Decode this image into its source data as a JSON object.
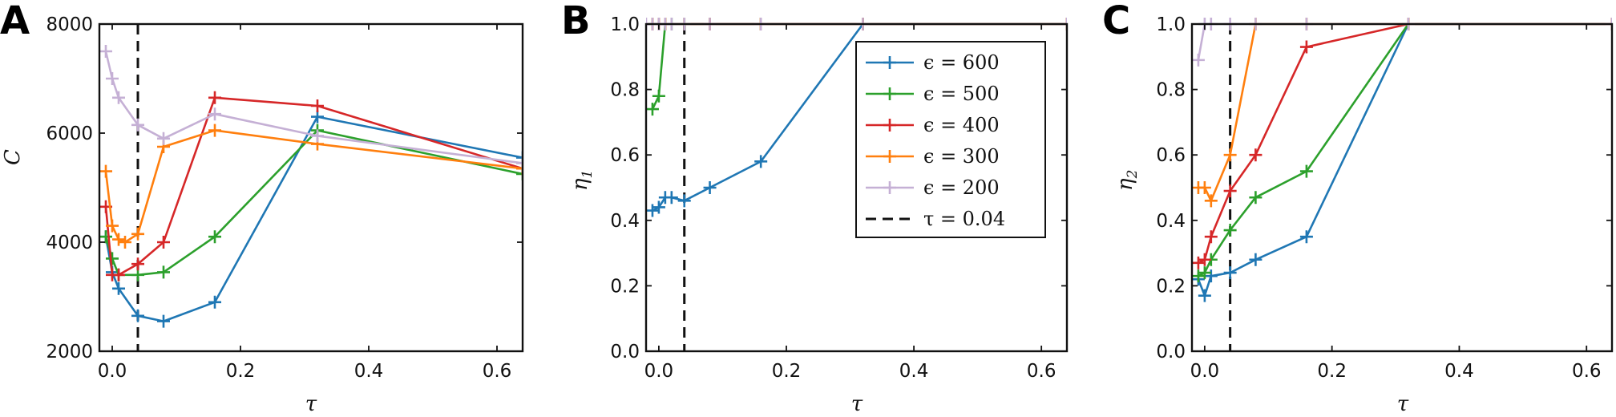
{
  "chart_data": [
    {
      "panel": "A",
      "type": "line",
      "xlabel": "τ",
      "ylabel": "C",
      "xlim": [
        -0.02,
        0.64
      ],
      "ylim": [
        2000,
        8000
      ],
      "xticks": [
        0.0,
        0.2,
        0.4,
        0.6
      ],
      "xtick_labels": [
        "0.0",
        "0.2",
        "0.4",
        "0.6"
      ],
      "yticks": [
        2000,
        4000,
        6000,
        8000
      ],
      "ytick_labels": [
        "2000",
        "4000",
        "6000",
        "8000"
      ],
      "grid": false,
      "vline": 0.04,
      "series": [
        {
          "name": "ϵ = 600",
          "color": "#1f77b4",
          "x": [
            -0.01,
            0.0,
            0.01,
            0.04,
            0.08,
            0.16,
            0.32,
            0.64
          ],
          "y": [
            4100,
            3450,
            3150,
            2650,
            2550,
            2900,
            6300,
            5550
          ]
        },
        {
          "name": "ϵ = 500",
          "color": "#2ca02c",
          "x": [
            -0.01,
            0.0,
            0.01,
            0.04,
            0.08,
            0.16,
            0.32,
            0.64
          ],
          "y": [
            4100,
            3700,
            3400,
            3400,
            3450,
            4100,
            6050,
            5250
          ]
        },
        {
          "name": "ϵ = 400",
          "color": "#d62728",
          "x": [
            -0.01,
            0.0,
            0.01,
            0.04,
            0.08,
            0.16,
            0.32,
            0.64
          ],
          "y": [
            4650,
            3400,
            3400,
            3600,
            4000,
            6650,
            6500,
            5350
          ]
        },
        {
          "name": "ϵ = 300",
          "color": "#ff7f0e",
          "x": [
            -0.01,
            0.0,
            0.01,
            0.02,
            0.04,
            0.08,
            0.16,
            0.32,
            0.64
          ],
          "y": [
            5300,
            4300,
            4050,
            4000,
            4150,
            5750,
            6050,
            5800,
            5350
          ]
        },
        {
          "name": "ϵ = 200",
          "color": "#c5b0d5",
          "x": [
            -0.01,
            0.0,
            0.01,
            0.04,
            0.08,
            0.16,
            0.32,
            0.64
          ],
          "y": [
            7500,
            7000,
            6650,
            6150,
            5900,
            6350,
            5950,
            5450
          ]
        }
      ]
    },
    {
      "panel": "B",
      "type": "line",
      "xlabel": "τ",
      "ylabel": "η",
      "ylabel_sub": "1",
      "xlim": [
        -0.02,
        0.64
      ],
      "ylim": [
        0.0,
        1.0
      ],
      "xticks": [
        0.0,
        0.2,
        0.4,
        0.6
      ],
      "xtick_labels": [
        "0.0",
        "0.2",
        "0.4",
        "0.6"
      ],
      "yticks": [
        0.0,
        0.2,
        0.4,
        0.6,
        0.8,
        1.0
      ],
      "ytick_labels": [
        "0.0",
        "0.2",
        "0.4",
        "0.6",
        "0.8",
        "1.0"
      ],
      "grid": false,
      "vline": 0.04,
      "series": [
        {
          "name": "ϵ = 600",
          "color": "#1f77b4",
          "x": [
            -0.01,
            0.0,
            0.01,
            0.02,
            0.04,
            0.08,
            0.16,
            0.32,
            0.64
          ],
          "y": [
            0.43,
            0.44,
            0.47,
            0.47,
            0.46,
            0.5,
            0.58,
            1.0,
            1.0
          ]
        },
        {
          "name": "ϵ = 500",
          "color": "#2ca02c",
          "x": [
            -0.01,
            0.0,
            0.01,
            0.02,
            0.04,
            0.08,
            0.16,
            0.32,
            0.64
          ],
          "y": [
            0.74,
            0.78,
            1.0,
            1.0,
            1.0,
            1.0,
            1.0,
            1.0,
            1.0
          ]
        },
        {
          "name": "ϵ = 400",
          "color": "#d62728",
          "x": [
            -0.01,
            0.0,
            0.01,
            0.04,
            0.08,
            0.16,
            0.32,
            0.64
          ],
          "y": [
            1.0,
            1.0,
            1.0,
            1.0,
            1.0,
            1.0,
            1.0,
            1.0
          ]
        },
        {
          "name": "ϵ = 300",
          "color": "#ff7f0e",
          "x": [
            -0.01,
            0.0,
            0.01,
            0.04,
            0.08,
            0.16,
            0.32,
            0.64
          ],
          "y": [
            1.0,
            1.0,
            1.0,
            1.0,
            1.0,
            1.0,
            1.0,
            1.0
          ]
        },
        {
          "name": "ϵ = 200",
          "color": "#c5b0d5",
          "x": [
            -0.02,
            -0.01,
            0.0,
            0.01,
            0.02,
            0.04,
            0.08,
            0.16,
            0.32,
            0.64
          ],
          "y": [
            1.0,
            1.0,
            1.0,
            1.0,
            1.0,
            1.0,
            1.0,
            1.0,
            1.0,
            1.0
          ]
        }
      ],
      "legend": {
        "placement": "top-right",
        "entries": [
          "ϵ = 600",
          "ϵ = 500",
          "ϵ = 400",
          "ϵ = 300",
          "ϵ = 200",
          "τ = 0.04"
        ]
      }
    },
    {
      "panel": "C",
      "type": "line",
      "xlabel": "τ",
      "ylabel": "η",
      "ylabel_sub": "2",
      "xlim": [
        -0.02,
        0.64
      ],
      "ylim": [
        0.0,
        1.0
      ],
      "xticks": [
        0.0,
        0.2,
        0.4,
        0.6
      ],
      "xtick_labels": [
        "0.0",
        "0.2",
        "0.4",
        "0.6"
      ],
      "yticks": [
        0.0,
        0.2,
        0.4,
        0.6,
        0.8,
        1.0
      ],
      "ytick_labels": [
        "0.0",
        "0.2",
        "0.4",
        "0.6",
        "0.8",
        "1.0"
      ],
      "grid": false,
      "vline": 0.04,
      "series": [
        {
          "name": "ϵ = 600",
          "color": "#1f77b4",
          "x": [
            -0.01,
            0.0,
            0.01,
            0.04,
            0.08,
            0.16,
            0.32,
            0.64
          ],
          "y": [
            0.22,
            0.17,
            0.23,
            0.24,
            0.28,
            0.35,
            1.0,
            1.0
          ]
        },
        {
          "name": "ϵ = 500",
          "color": "#2ca02c",
          "x": [
            -0.01,
            0.0,
            0.01,
            0.04,
            0.08,
            0.16,
            0.32,
            0.64
          ],
          "y": [
            0.23,
            0.24,
            0.28,
            0.37,
            0.47,
            0.55,
            1.0,
            1.0
          ]
        },
        {
          "name": "ϵ = 400",
          "color": "#d62728",
          "x": [
            -0.01,
            0.0,
            0.01,
            0.04,
            0.08,
            0.16,
            0.32,
            0.64
          ],
          "y": [
            0.27,
            0.28,
            0.35,
            0.49,
            0.6,
            0.93,
            1.0,
            1.0
          ]
        },
        {
          "name": "ϵ = 300",
          "color": "#ff7f0e",
          "x": [
            -0.01,
            0.0,
            0.01,
            0.04,
            0.08,
            0.16,
            0.32,
            0.64
          ],
          "y": [
            0.5,
            0.5,
            0.46,
            0.6,
            1.0,
            1.0,
            1.0,
            1.0
          ]
        },
        {
          "name": "ϵ = 200",
          "color": "#c5b0d5",
          "x": [
            -0.01,
            0.0,
            0.01,
            0.04,
            0.08,
            0.16,
            0.32,
            0.64
          ],
          "y": [
            0.89,
            1.0,
            1.0,
            1.0,
            1.0,
            1.0,
            1.0,
            1.0
          ]
        }
      ]
    }
  ]
}
